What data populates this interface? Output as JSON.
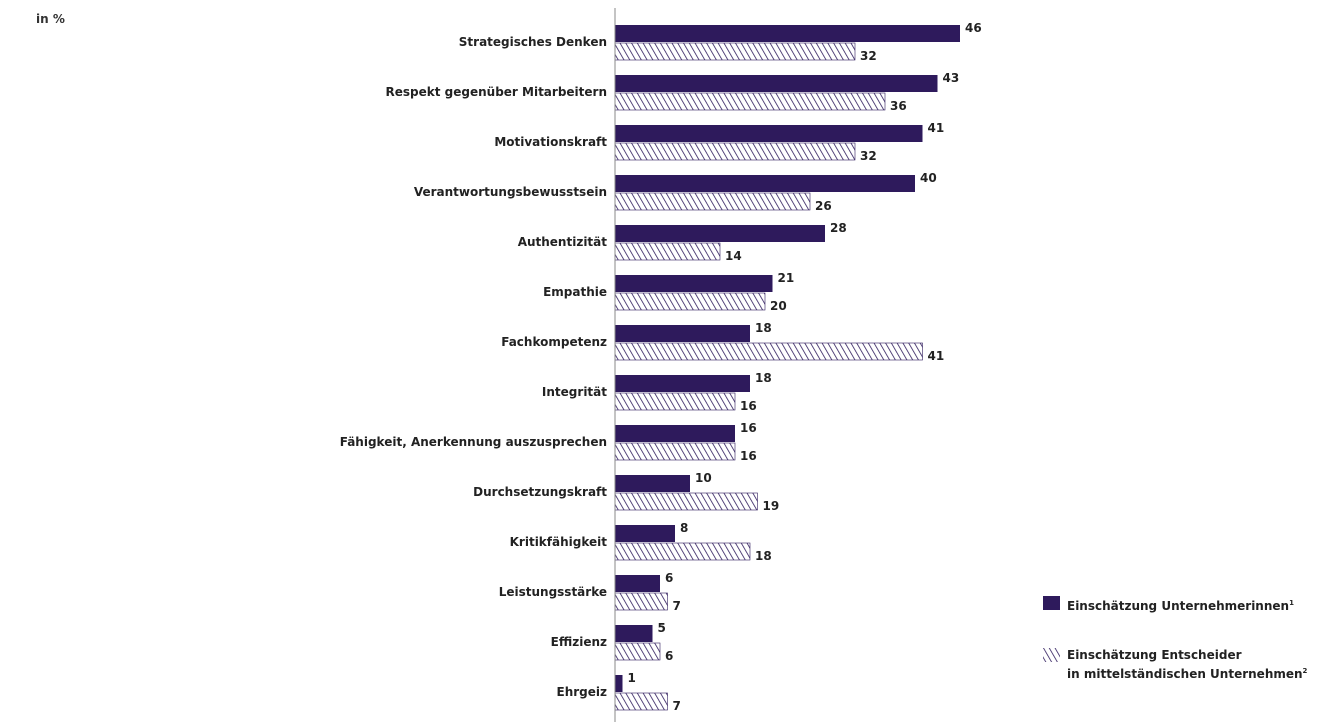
{
  "unit_label": "in %",
  "colors": {
    "primary": "#2e1a5c",
    "hatch_bg": "#ffffff"
  },
  "legend": [
    {
      "label": "Einschätzung Unternehmerinnen",
      "footnote": "1",
      "style": "solid"
    },
    {
      "label_line1": "Einschätzung Entscheider",
      "label_line2": "in mittelständischen Unternehmen",
      "footnote": "2",
      "style": "hatched"
    }
  ],
  "chart_data": {
    "type": "bar",
    "orientation": "horizontal",
    "categories": [
      "Strategisches Denken",
      "Respekt gegenüber Mitarbeitern",
      "Motivationskraft",
      "Verantwortungsbewusstsein",
      "Authentizität",
      "Empathie",
      "Fachkompetenz",
      "Integrität",
      "Fähigkeit, Anerkennung auszusprechen",
      "Durchsetzungskraft",
      "Kritikfähigkeit",
      "Leistungsstärke",
      "Effizienz",
      "Ehrgeiz"
    ],
    "series": [
      {
        "name": "Einschätzung Unternehmerinnen",
        "style": "solid",
        "values": [
          46,
          43,
          41,
          40,
          28,
          21,
          18,
          18,
          16,
          10,
          8,
          6,
          5,
          1
        ]
      },
      {
        "name": "Einschätzung Entscheider in mittelständischen Unternehmen",
        "style": "hatched",
        "values": [
          32,
          36,
          32,
          26,
          14,
          20,
          41,
          16,
          16,
          19,
          18,
          7,
          6,
          7
        ]
      }
    ],
    "xlim": [
      0,
      46
    ],
    "grid": false,
    "legend_position": "bottom-right"
  }
}
